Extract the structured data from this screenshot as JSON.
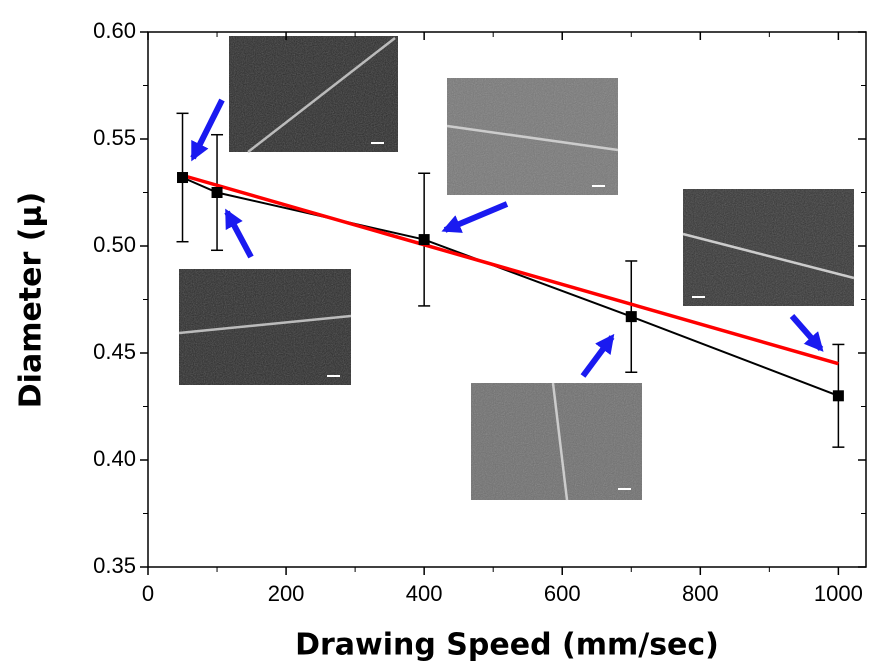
{
  "chart_data": {
    "type": "line",
    "x_label": "Drawing Speed (mm/sec)",
    "y_label": "Diameter (μ)",
    "x": [
      50,
      100,
      400,
      700,
      1000
    ],
    "series": [
      {
        "color": "#000000",
        "values": [
          0.532,
          0.525,
          0.503,
          0.467,
          0.43
        ],
        "errors": [
          0.03,
          0.027,
          0.031,
          0.026,
          0.024
        ]
      }
    ],
    "fit_line": {
      "color": "#ff0000",
      "x": [
        50,
        1000
      ],
      "values": [
        0.533,
        0.445
      ]
    },
    "xlim": [
      0,
      1040
    ],
    "ylim": [
      0.35,
      0.6
    ],
    "xticks": [
      0,
      200,
      400,
      600,
      800,
      1000
    ],
    "yticks": [
      0.35,
      {
        "value": 0.4,
        "label": "0.40"
      },
      0.45,
      {
        "value": 0.5,
        "label": "0.50"
      },
      0.55,
      {
        "value": 0.6,
        "label": "0.60"
      }
    ],
    "minor_ticks": true
  }
}
